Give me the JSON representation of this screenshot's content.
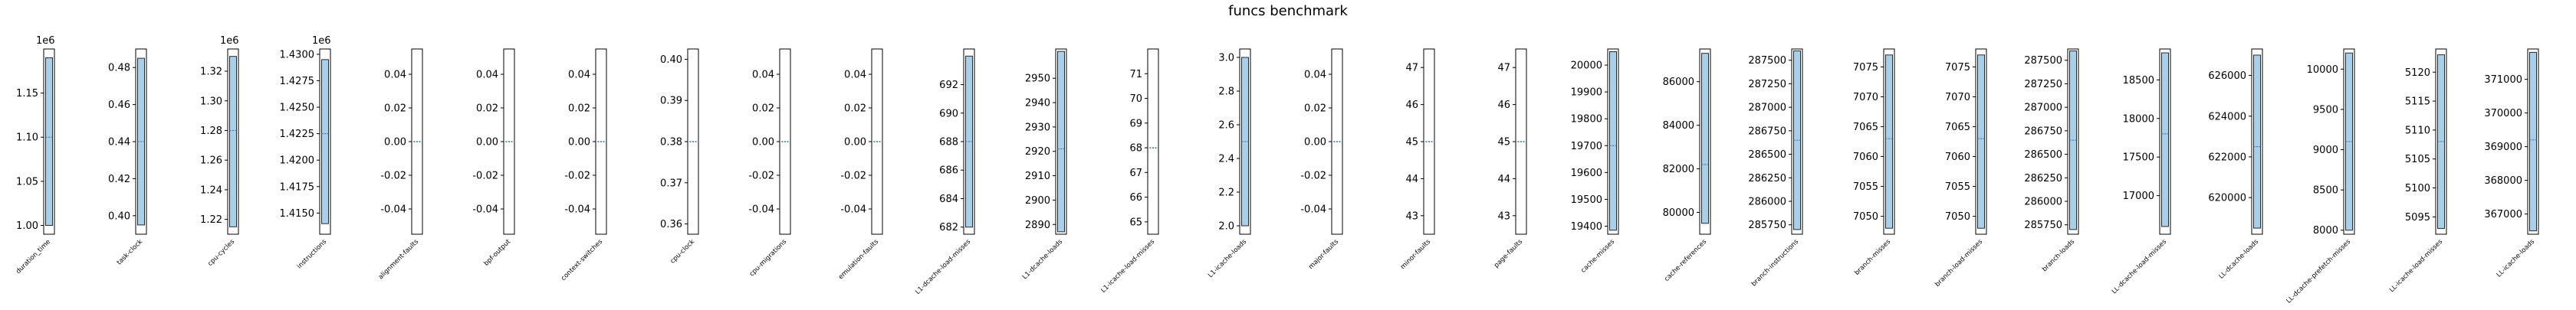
{
  "chart_data": {
    "type": "bar",
    "title": "funcs benchmark",
    "colors": {
      "bar_fill": "#a9cfeb",
      "bar_edge": "#2a2a2a",
      "median": "#2b6fa8",
      "frame": "#000000"
    },
    "panels": [
      {
        "label": "duration_time",
        "multiplier": "1e6",
        "ticks": [
          "1.00",
          "1.05",
          "1.10",
          "1.15"
        ],
        "ylim": [
          0.99,
          1.2
        ],
        "range": [
          1.0,
          1.19
        ],
        "median": 1.1,
        "ghost": false
      },
      {
        "label": "task-clock",
        "multiplier": "",
        "ticks": [
          "0.40",
          "0.42",
          "0.44",
          "0.46",
          "0.48"
        ],
        "ylim": [
          0.39,
          0.49
        ],
        "range": [
          0.395,
          0.485
        ],
        "median": 0.44,
        "ghost": false
      },
      {
        "label": "cpu-cycles",
        "multiplier": "1e6",
        "ticks": [
          "1.22",
          "1.24",
          "1.26",
          "1.28",
          "1.30",
          "1.32"
        ],
        "ylim": [
          1.21,
          1.335
        ],
        "range": [
          1.215,
          1.33
        ],
        "median": 1.28,
        "ghost": false
      },
      {
        "label": "instructions",
        "multiplier": "1e6",
        "ticks": [
          "1.4150",
          "1.4175",
          "1.4200",
          "1.4225",
          "1.4250",
          "1.4275",
          "1.4300"
        ],
        "ylim": [
          1.413,
          1.4305
        ],
        "range": [
          1.414,
          1.4295
        ],
        "median": 1.4225,
        "ghost": false
      },
      {
        "label": "alignment-faults",
        "multiplier": "",
        "ticks": [
          "-0.04",
          "-0.02",
          "0.00",
          "0.02",
          "0.04"
        ],
        "ylim": [
          -0.055,
          0.055
        ],
        "range": [
          0,
          0
        ],
        "median": 0,
        "ghost": true
      },
      {
        "label": "bpf-output",
        "multiplier": "",
        "ticks": [
          "-0.04",
          "-0.02",
          "0.00",
          "0.02",
          "0.04"
        ],
        "ylim": [
          -0.055,
          0.055
        ],
        "range": [
          0,
          0
        ],
        "median": 0,
        "ghost": true
      },
      {
        "label": "context-switches",
        "multiplier": "",
        "ticks": [
          "-0.04",
          "-0.02",
          "0.00",
          "0.02",
          "0.04"
        ],
        "ylim": [
          -0.055,
          0.055
        ],
        "range": [
          0,
          0
        ],
        "median": 0,
        "ghost": true
      },
      {
        "label": "cpu-clock",
        "multiplier": "",
        "ticks": [
          "0.36",
          "0.37",
          "0.38",
          "0.39",
          "0.40"
        ],
        "ylim": [
          0.3575,
          0.4025
        ],
        "range": [
          0.38,
          0.38
        ],
        "median": 0.38,
        "ghost": true
      },
      {
        "label": "cpu-migrations",
        "multiplier": "",
        "ticks": [
          "-0.04",
          "-0.02",
          "0.00",
          "0.02",
          "0.04"
        ],
        "ylim": [
          -0.055,
          0.055
        ],
        "range": [
          0,
          0
        ],
        "median": 0,
        "ghost": true
      },
      {
        "label": "emulation-faults",
        "multiplier": "",
        "ticks": [
          "-0.04",
          "-0.02",
          "0.00",
          "0.02",
          "0.04"
        ],
        "ylim": [
          -0.055,
          0.055
        ],
        "range": [
          0,
          0
        ],
        "median": 0,
        "ghost": true
      },
      {
        "label": "L1-dcache-load-misses",
        "multiplier": "",
        "ticks": [
          "682",
          "684",
          "686",
          "688",
          "690",
          "692"
        ],
        "ylim": [
          681.5,
          694.5
        ],
        "range": [
          682,
          694
        ],
        "median": 688,
        "ghost": false
      },
      {
        "label": "L1-dcache-loads",
        "multiplier": "",
        "ticks": [
          "2890",
          "2900",
          "2910",
          "2920",
          "2930",
          "2940",
          "2950"
        ],
        "ylim": [
          2886,
          2962
        ],
        "range": [
          2887,
          2961
        ],
        "median": 2921,
        "ghost": false
      },
      {
        "label": "L1-icache-load-misses",
        "multiplier": "",
        "ticks": [
          "65",
          "66",
          "67",
          "68",
          "69",
          "70",
          "71"
        ],
        "ylim": [
          64.5,
          72.0
        ],
        "range": [
          68,
          68
        ],
        "median": 68,
        "ghost": true
      },
      {
        "label": "L1-icache-loads",
        "multiplier": "",
        "ticks": [
          "2.0",
          "2.2",
          "2.4",
          "2.6",
          "2.8",
          "3.0"
        ],
        "ylim": [
          1.95,
          3.05
        ],
        "range": [
          2.0,
          3.0
        ],
        "median": 2.5,
        "ghost": false
      },
      {
        "label": "major-faults",
        "multiplier": "",
        "ticks": [
          "-0.04",
          "-0.02",
          "0.00",
          "0.02",
          "0.04"
        ],
        "ylim": [
          -0.055,
          0.055
        ],
        "range": [
          0,
          0
        ],
        "median": 0,
        "ghost": true
      },
      {
        "label": "minor-faults",
        "multiplier": "",
        "ticks": [
          "43",
          "44",
          "45",
          "46",
          "47"
        ],
        "ylim": [
          42.5,
          47.5
        ],
        "range": [
          45,
          45
        ],
        "median": 45,
        "ghost": true
      },
      {
        "label": "page-faults",
        "multiplier": "",
        "ticks": [
          "43",
          "44",
          "45",
          "46",
          "47"
        ],
        "ylim": [
          42.5,
          47.5
        ],
        "range": [
          45,
          45
        ],
        "median": 45,
        "ghost": true
      },
      {
        "label": "cache-misses",
        "multiplier": "",
        "ticks": [
          "19400",
          "19500",
          "19600",
          "19700",
          "19800",
          "19900",
          "20000"
        ],
        "ylim": [
          19370,
          20060
        ],
        "range": [
          19385,
          20050
        ],
        "median": 19700,
        "ghost": false
      },
      {
        "label": "cache-references",
        "multiplier": "",
        "ticks": [
          "80000",
          "82000",
          "84000",
          "86000"
        ],
        "ylim": [
          79000,
          87500
        ],
        "range": [
          79500,
          87300
        ],
        "median": 82200,
        "ghost": false
      },
      {
        "label": "branch-instructions",
        "multiplier": "",
        "ticks": [
          "285750",
          "286000",
          "286250",
          "286500",
          "286750",
          "287000",
          "287250",
          "287500"
        ],
        "ylim": [
          285650,
          287620
        ],
        "range": [
          285700,
          287600
        ],
        "median": 286650,
        "ghost": false
      },
      {
        "label": "branch-misses",
        "multiplier": "",
        "ticks": [
          "7050",
          "7055",
          "7060",
          "7065",
          "7070",
          "7075"
        ],
        "ylim": [
          7047,
          7078
        ],
        "range": [
          7048,
          7077
        ],
        "median": 7063,
        "ghost": false
      },
      {
        "label": "branch-load-misses",
        "multiplier": "",
        "ticks": [
          "7050",
          "7055",
          "7060",
          "7065",
          "7070",
          "7075"
        ],
        "ylim": [
          7047,
          7078
        ],
        "range": [
          7048,
          7077
        ],
        "median": 7063,
        "ghost": false
      },
      {
        "label": "branch-loads",
        "multiplier": "",
        "ticks": [
          "285750",
          "286000",
          "286250",
          "286500",
          "286750",
          "287000",
          "287250",
          "287500"
        ],
        "ylim": [
          285650,
          287620
        ],
        "range": [
          285700,
          287600
        ],
        "median": 286650,
        "ghost": false
      },
      {
        "label": "LL-dcache-load-misses",
        "multiplier": "",
        "ticks": [
          "17000",
          "17500",
          "18000",
          "18500"
        ],
        "ylim": [
          16500,
          18900
        ],
        "range": [
          16600,
          18850
        ],
        "median": 17800,
        "ghost": false
      },
      {
        "label": "LL-dcache-loads",
        "multiplier": "",
        "ticks": [
          "620000",
          "622000",
          "624000",
          "626000"
        ],
        "ylim": [
          618200,
          627300
        ],
        "range": [
          618500,
          627000
        ],
        "median": 622500,
        "ghost": false
      },
      {
        "label": "LL-dcache-prefetch-misses",
        "multiplier": "",
        "ticks": [
          "8000",
          "8500",
          "9000",
          "9500",
          "10000"
        ],
        "ylim": [
          7950,
          10250
        ],
        "range": [
          8000,
          10200
        ],
        "median": 9100,
        "ghost": false
      },
      {
        "label": "LL-icache-load-misses",
        "multiplier": "",
        "ticks": [
          "5095",
          "5100",
          "5105",
          "5110",
          "5115",
          "5120"
        ],
        "ylim": [
          5092,
          5124
        ],
        "range": [
          5093,
          5123
        ],
        "median": 5108,
        "ghost": false
      },
      {
        "label": "LL-icache-loads",
        "multiplier": "",
        "ticks": [
          "367000",
          "368000",
          "369000",
          "370000",
          "371000"
        ],
        "ylim": [
          366400,
          371900
        ],
        "range": [
          366500,
          371800
        ],
        "median": 369200,
        "ghost": false
      }
    ]
  }
}
